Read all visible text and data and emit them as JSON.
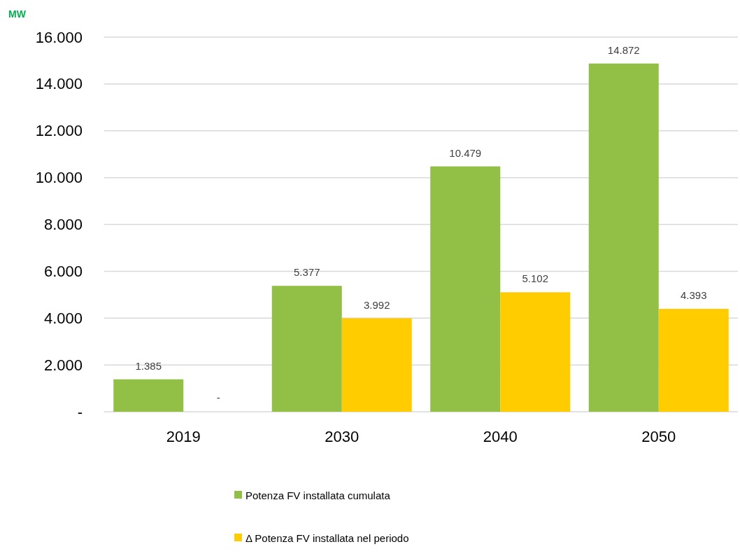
{
  "chart_data": {
    "type": "bar",
    "ylabel": "MW",
    "categories": [
      "2019",
      "2030",
      "2040",
      "2050"
    ],
    "series": [
      {
        "name": "Potenza FV installata cumulata",
        "color": "#92bf45",
        "values": [
          1385,
          5377,
          10479,
          14872
        ],
        "value_labels": [
          "1.385",
          "5.377",
          "10.479",
          "14.872"
        ]
      },
      {
        "name": "Δ Potenza FV installata nel periodo",
        "color": "#ffcc00",
        "values": [
          0,
          3992,
          5102,
          4393
        ],
        "value_labels": [
          null,
          "3.992",
          "5.102",
          "4.393"
        ]
      }
    ],
    "annotations": [
      "-"
    ],
    "ylim": [
      0,
      16000
    ],
    "yticks": [
      {
        "value": 0,
        "label": "-"
      },
      {
        "value": 2000,
        "label": "2.000"
      },
      {
        "value": 4000,
        "label": "4.000"
      },
      {
        "value": 6000,
        "label": "6.000"
      },
      {
        "value": 8000,
        "label": "8.000"
      },
      {
        "value": 10000,
        "label": "10.000"
      },
      {
        "value": 12000,
        "label": "12.000"
      },
      {
        "value": 14000,
        "label": "14.000"
      },
      {
        "value": 16000,
        "label": "16.000"
      }
    ],
    "grid": "y",
    "legend": "bottom"
  }
}
